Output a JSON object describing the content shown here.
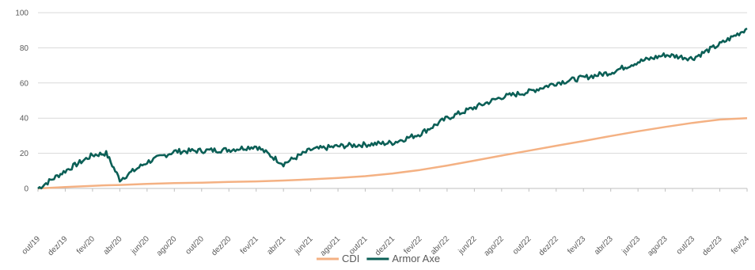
{
  "chart_data": {
    "type": "line",
    "title": "",
    "xlabel": "",
    "ylabel": "",
    "ylim": [
      -10,
      100
    ],
    "yticks": [
      0,
      20,
      40,
      60,
      80,
      100
    ],
    "grid": {
      "horizontal": true,
      "vertical": false
    },
    "legend_position": "bottom",
    "x_tick_labels": [
      "out/19",
      "dez/19",
      "fev/20",
      "abr/20",
      "jun/20",
      "ago/20",
      "out/20",
      "dez/20",
      "fev/21",
      "abr/21",
      "jun/21",
      "ago/21",
      "out/21",
      "dez/21",
      "fev/22",
      "abr/22",
      "jun/22",
      "ago/22",
      "out/22",
      "dez/22",
      "fev/23",
      "abr/23",
      "jun/23",
      "ago/23",
      "out/23",
      "dez/23",
      "fev/24"
    ],
    "x": [
      "out/19",
      "dez/19",
      "fev/20",
      "mar/20",
      "abr/20",
      "jun/20",
      "ago/20",
      "out/20",
      "dez/20",
      "fev/21",
      "abr/21",
      "jun/21",
      "ago/21",
      "out/21",
      "dez/21",
      "fev/22",
      "abr/22",
      "jun/22",
      "ago/22",
      "out/22",
      "dez/22",
      "fev/23",
      "abr/23",
      "jun/23",
      "ago/23",
      "out/23",
      "dez/23",
      "fev/24"
    ],
    "series": [
      {
        "name": "CDI",
        "color": "#F4B183",
        "values": [
          0,
          0.8,
          1.5,
          1.8,
          2.0,
          2.6,
          3.0,
          3.3,
          3.7,
          4.0,
          4.5,
          5.2,
          6.0,
          7.0,
          8.5,
          10.5,
          13.0,
          15.8,
          18.7,
          21.5,
          24.3,
          27.0,
          29.8,
          32.5,
          35.0,
          37.3,
          39.2,
          40.0
        ]
      },
      {
        "name": "Armor Axe",
        "color": "#0B5F56",
        "values": [
          0,
          10,
          19,
          20,
          5,
          15,
          21,
          21.5,
          22,
          24,
          14,
          22,
          24,
          25,
          26,
          31,
          40,
          46,
          52,
          55,
          60,
          63,
          66,
          72,
          76,
          74,
          82,
          91
        ]
      }
    ],
    "colors": {
      "grid": "#D9D9D9",
      "axis": "#BFBFBF",
      "text": "#595959"
    }
  }
}
